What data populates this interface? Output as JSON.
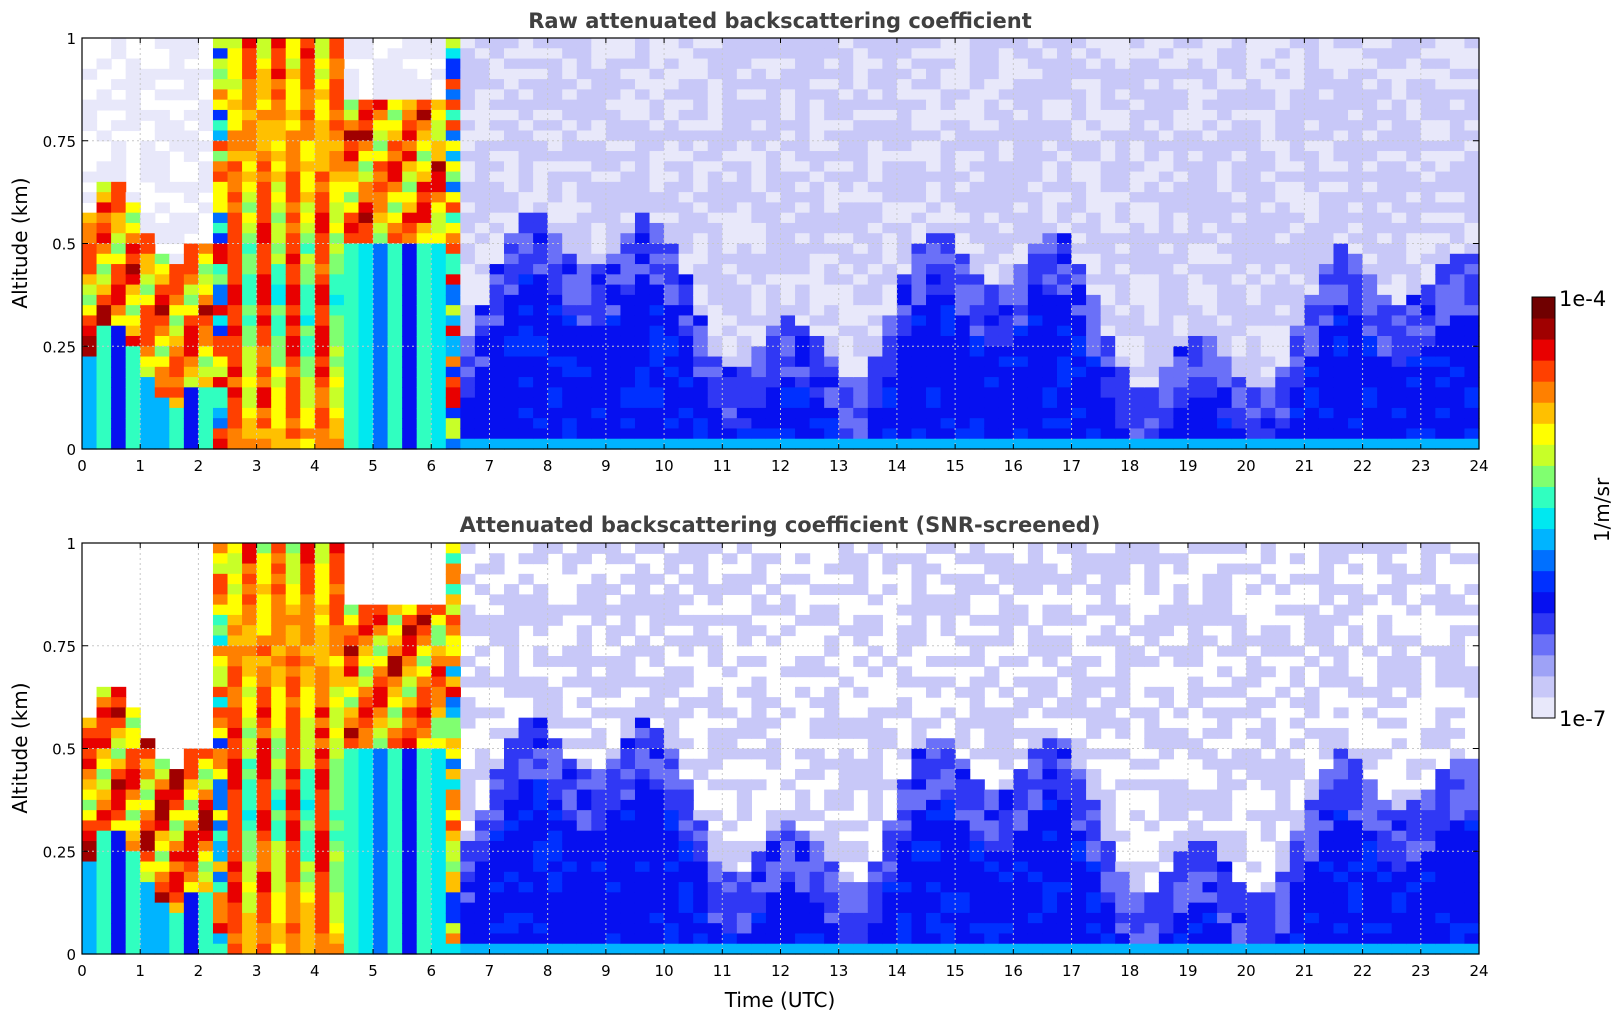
{
  "colors": {
    "colormap": [
      "#e8e8fa",
      "#c8c8f8",
      "#9ea2f6",
      "#6a70f8",
      "#3038f4",
      "#0610f0",
      "#0030ff",
      "#0070ff",
      "#00b4ff",
      "#00e8f0",
      "#30ffc0",
      "#80ff70",
      "#c8ff28",
      "#ffff00",
      "#ffc000",
      "#ff8000",
      "#ff4000",
      "#e80000",
      "#a00000",
      "#700000"
    ]
  },
  "chart_data": [
    {
      "type": "heatmap",
      "title": "Raw attenuated backscattering coefficient",
      "xlabel": "",
      "ylabel": "Altitude (km)",
      "xlim": [
        0,
        24
      ],
      "ylim": [
        0,
        1
      ],
      "xticks": [
        "0",
        "1",
        "2",
        "3",
        "4",
        "5",
        "6",
        "7",
        "8",
        "9",
        "10",
        "11",
        "12",
        "13",
        "14",
        "15",
        "16",
        "17",
        "18",
        "19",
        "20",
        "21",
        "22",
        "23",
        "24"
      ],
      "yticks": [
        "0",
        "0.25",
        "0.5",
        "0.75",
        "1"
      ],
      "grid": true,
      "screened": false
    },
    {
      "type": "heatmap",
      "title": "Attenuated backscattering coefficient (SNR-screened)",
      "xlabel": "Time (UTC)",
      "ylabel": "Altitude (km)",
      "xlim": [
        0,
        24
      ],
      "ylim": [
        0,
        1
      ],
      "xticks": [
        "0",
        "1",
        "2",
        "3",
        "4",
        "5",
        "6",
        "7",
        "8",
        "9",
        "10",
        "11",
        "12",
        "13",
        "14",
        "15",
        "16",
        "17",
        "18",
        "19",
        "20",
        "21",
        "22",
        "23",
        "24"
      ],
      "yticks": [
        "0",
        "0.25",
        "0.5",
        "0.75",
        "1"
      ],
      "grid": true,
      "screened": true
    }
  ],
  "colorbar": {
    "label": "1/m/sr",
    "max_label": "1e-4",
    "min_label": "1e-7",
    "scale": "log"
  }
}
